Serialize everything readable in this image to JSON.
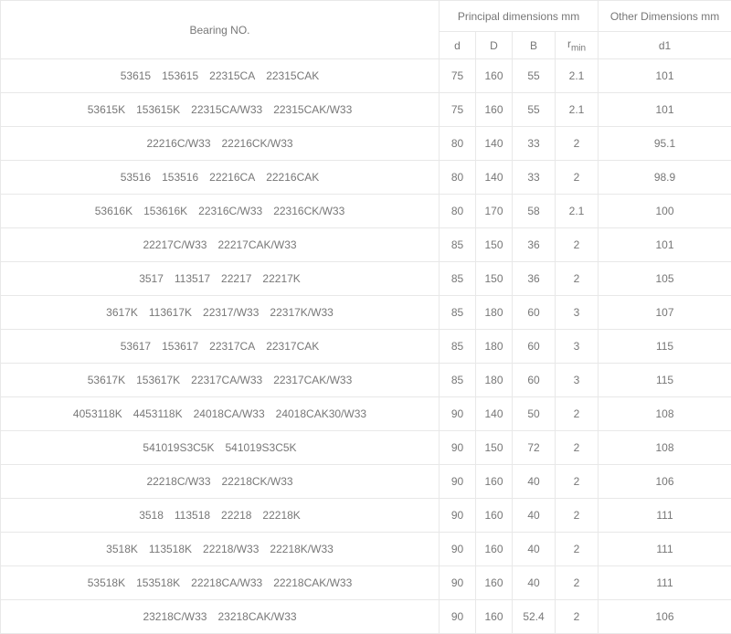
{
  "headers": {
    "bearing_no": "Bearing NO.",
    "principal_group": "Principal dimensions mm",
    "other_group": "Other Dimensions mm",
    "d": "d",
    "D": "D",
    "B": "B",
    "rmin_r": "r",
    "rmin_sub": "min",
    "d1": "d1"
  },
  "rows": [
    {
      "parts": [
        "53615",
        "153615",
        "22315CA",
        "22315CAK"
      ],
      "d": "75",
      "D": "160",
      "B": "55",
      "rmin": "2.1",
      "d1": "101"
    },
    {
      "parts": [
        "53615K",
        "153615K",
        "22315CA/W33",
        "22315CAK/W33"
      ],
      "d": "75",
      "D": "160",
      "B": "55",
      "rmin": "2.1",
      "d1": "101"
    },
    {
      "parts": [
        "22216C/W33",
        "22216CK/W33"
      ],
      "d": "80",
      "D": "140",
      "B": "33",
      "rmin": "2",
      "d1": "95.1"
    },
    {
      "parts": [
        "53516",
        "153516",
        "22216CA",
        "22216CAK"
      ],
      "d": "80",
      "D": "140",
      "B": "33",
      "rmin": "2",
      "d1": "98.9"
    },
    {
      "parts": [
        "53616K",
        "153616K",
        "22316C/W33",
        "22316CK/W33"
      ],
      "d": "80",
      "D": "170",
      "B": "58",
      "rmin": "2.1",
      "d1": "100"
    },
    {
      "parts": [
        "22217C/W33",
        "22217CAK/W33"
      ],
      "d": "85",
      "D": "150",
      "B": "36",
      "rmin": "2",
      "d1": "101"
    },
    {
      "parts": [
        "3517",
        "113517",
        "22217",
        "22217K"
      ],
      "d": "85",
      "D": "150",
      "B": "36",
      "rmin": "2",
      "d1": "105"
    },
    {
      "parts": [
        "3617K",
        "113617K",
        "22317/W33",
        "22317K/W33"
      ],
      "d": "85",
      "D": "180",
      "B": "60",
      "rmin": "3",
      "d1": "107"
    },
    {
      "parts": [
        "53617",
        "153617",
        "22317CA",
        "22317CAK"
      ],
      "d": "85",
      "D": "180",
      "B": "60",
      "rmin": "3",
      "d1": "115"
    },
    {
      "parts": [
        "53617K",
        "153617K",
        "22317CA/W33",
        "22317CAK/W33"
      ],
      "d": "85",
      "D": "180",
      "B": "60",
      "rmin": "3",
      "d1": "115"
    },
    {
      "parts": [
        "4053118K",
        "4453118K",
        "24018CA/W33",
        "24018CAK30/W33"
      ],
      "d": "90",
      "D": "140",
      "B": "50",
      "rmin": "2",
      "d1": "108"
    },
    {
      "parts": [
        "541019S3C5K",
        "541019S3C5K"
      ],
      "d": "90",
      "D": "150",
      "B": "72",
      "rmin": "2",
      "d1": "108"
    },
    {
      "parts": [
        "22218C/W33",
        "22218CK/W33"
      ],
      "d": "90",
      "D": "160",
      "B": "40",
      "rmin": "2",
      "d1": "106"
    },
    {
      "parts": [
        "3518",
        "113518",
        "22218",
        "22218K"
      ],
      "d": "90",
      "D": "160",
      "B": "40",
      "rmin": "2",
      "d1": "111"
    },
    {
      "parts": [
        "3518K",
        "113518K",
        "22218/W33",
        "22218K/W33"
      ],
      "d": "90",
      "D": "160",
      "B": "40",
      "rmin": "2",
      "d1": "111"
    },
    {
      "parts": [
        "53518K",
        "153518K",
        "22218CA/W33",
        "22218CAK/W33"
      ],
      "d": "90",
      "D": "160",
      "B": "40",
      "rmin": "2",
      "d1": "111"
    },
    {
      "parts": [
        "23218C/W33",
        "23218CAK/W33"
      ],
      "d": "90",
      "D": "160",
      "B": "52.4",
      "rmin": "2",
      "d1": "106"
    }
  ]
}
